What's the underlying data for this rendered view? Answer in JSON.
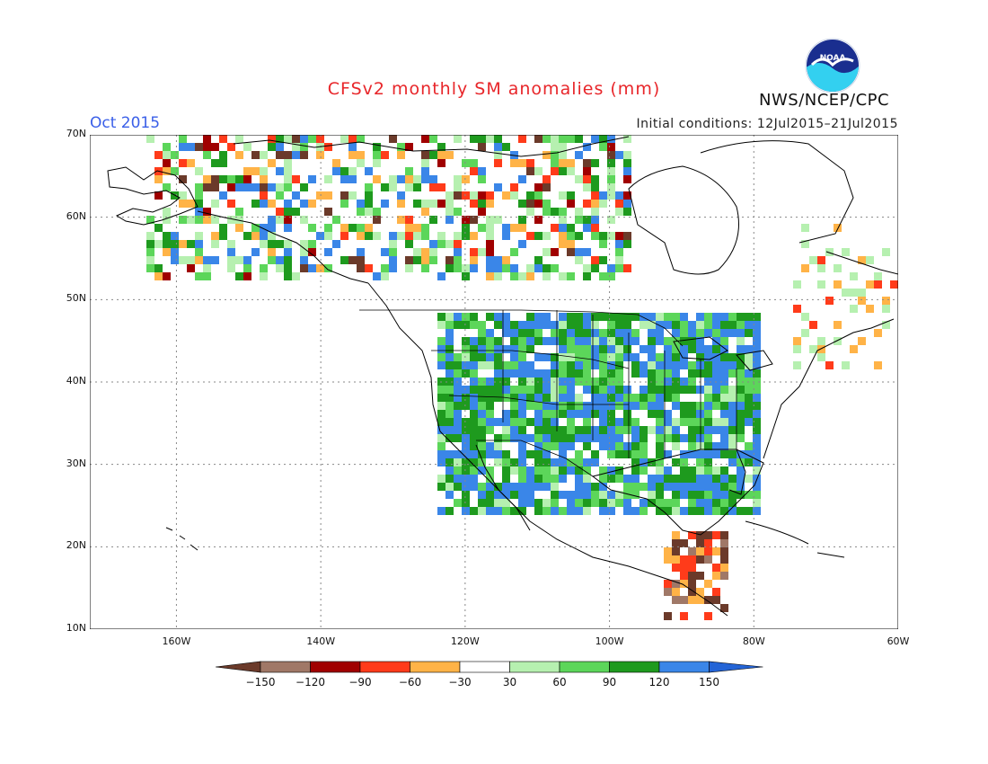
{
  "title": "CFSv2 monthly SM anomalies (mm)",
  "month_label": "Oct 2015",
  "initial_conditions": "Initial conditions: 12Jul2015–21Jul2015",
  "agency": "NWS/NCEP/CPC",
  "logo_text": "NOAA",
  "map": {
    "lon_range": [
      -172,
      -60
    ],
    "lat_range": [
      10,
      70
    ],
    "lat_labels": [
      "70N",
      "60N",
      "50N",
      "40N",
      "30N",
      "20N",
      "10N"
    ],
    "lon_labels": [
      "160W",
      "140W",
      "120W",
      "100W",
      "80W",
      "60W"
    ],
    "lon_label_values": [
      -160,
      -140,
      -120,
      -100,
      -80,
      -60
    ],
    "lat_label_values": [
      70,
      60,
      50,
      40,
      30,
      20,
      10
    ]
  },
  "legend": {
    "colors": [
      "#6b3a2a",
      "#a07867",
      "#a00000",
      "#ff3b1a",
      "#ffb347",
      "#ffffff",
      "#b6f0b0",
      "#5cd65a",
      "#1e9a1e",
      "#3a86e8",
      "#2464d6"
    ],
    "labels": [
      "−150",
      "−120",
      "−90",
      "−60",
      "−30",
      "30",
      "60",
      "90",
      "120",
      "150"
    ]
  },
  "colors": {
    "title": "#e8262a",
    "month": "#3a5fe8"
  }
}
